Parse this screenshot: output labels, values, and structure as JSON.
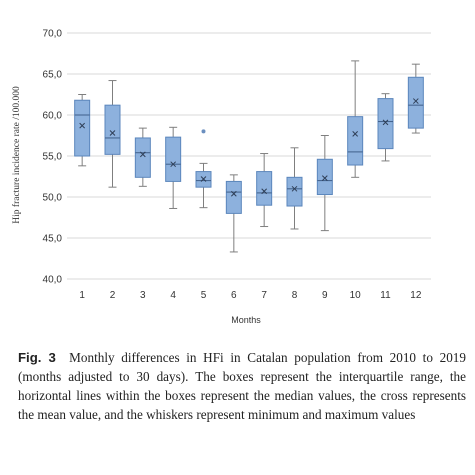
{
  "chart_data": {
    "type": "box",
    "xlabel": "Months",
    "ylabel": "Hip fracture incidence rate /100.000",
    "ylim": [
      40,
      70
    ],
    "yticks": [
      "40,0",
      "45,0",
      "50,0",
      "55,0",
      "60,0",
      "65,0",
      "70,0"
    ],
    "categories": [
      "1",
      "2",
      "3",
      "4",
      "5",
      "6",
      "7",
      "8",
      "9",
      "10",
      "11",
      "12"
    ],
    "grid": "horizontal",
    "box_color": "#8db1dd",
    "box_edge_color": "#5b86bc",
    "whisker_color": "#7f7f7f",
    "boxes": [
      {
        "month": "1",
        "min": 53.8,
        "q1": 55.0,
        "median": 60.0,
        "q3": 61.8,
        "max": 62.5,
        "mean": 58.7
      },
      {
        "month": "2",
        "min": 51.2,
        "q1": 55.2,
        "median": 57.2,
        "q3": 61.2,
        "max": 64.2,
        "mean": 57.8
      },
      {
        "month": "3",
        "min": 51.3,
        "q1": 52.4,
        "median": 55.4,
        "q3": 57.2,
        "max": 58.4,
        "mean": 55.2
      },
      {
        "month": "4",
        "min": 48.6,
        "q1": 51.9,
        "median": 54.0,
        "q3": 57.3,
        "max": 58.5,
        "mean": 54.0
      },
      {
        "month": "5",
        "min": 48.7,
        "q1": 51.2,
        "median": 52.0,
        "q3": 53.1,
        "max": 54.1,
        "mean": 52.2,
        "outliers": [
          58.0
        ]
      },
      {
        "month": "6",
        "min": 43.3,
        "q1": 48.0,
        "median": 50.6,
        "q3": 51.9,
        "max": 52.7,
        "mean": 50.4
      },
      {
        "month": "7",
        "min": 46.4,
        "q1": 49.0,
        "median": 50.5,
        "q3": 53.1,
        "max": 55.3,
        "mean": 50.7
      },
      {
        "month": "8",
        "min": 46.1,
        "q1": 48.9,
        "median": 51.0,
        "q3": 52.4,
        "max": 56.0,
        "mean": 51.0
      },
      {
        "month": "9",
        "min": 45.9,
        "q1": 50.3,
        "median": 52.0,
        "q3": 54.6,
        "max": 57.5,
        "mean": 52.3
      },
      {
        "month": "10",
        "min": 52.4,
        "q1": 53.9,
        "median": 55.5,
        "q3": 59.8,
        "max": 66.6,
        "mean": 57.7
      },
      {
        "month": "11",
        "min": 54.4,
        "q1": 55.9,
        "median": 59.2,
        "q3": 62.0,
        "max": 62.6,
        "mean": 59.1
      },
      {
        "month": "12",
        "min": 57.8,
        "q1": 58.4,
        "median": 61.2,
        "q3": 64.6,
        "max": 66.2,
        "mean": 61.7
      }
    ]
  },
  "caption": {
    "label": "Fig. 3",
    "text": "Monthly differences in HFi in Catalan population from 2010 to 2019 (months adjusted to 30 days). The boxes represent the interquartile range, the horizontal lines within the boxes represent the median values, the cross represents the mean value, and the whiskers represent minimum and maximum values"
  }
}
